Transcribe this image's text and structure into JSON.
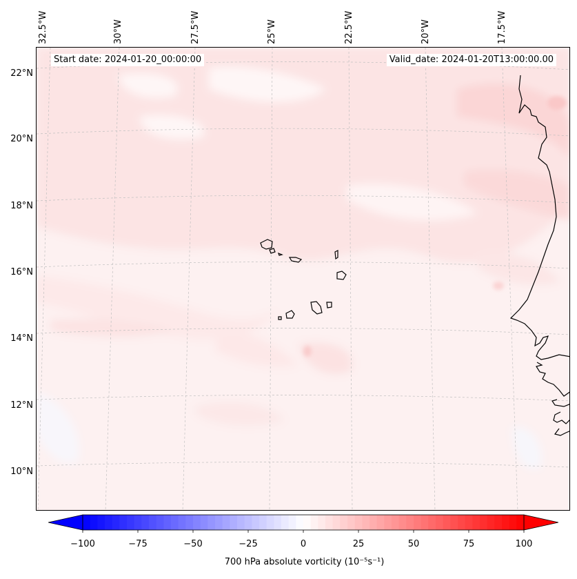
{
  "map": {
    "start_date": "Start date: 2024-01-20_00:00:00",
    "valid_date": "Valid_date: 2024-01-20T13:00:00.00",
    "lon_labels": [
      "32.5°W",
      "30°W",
      "27.5°W",
      "25°W",
      "22.5°W",
      "20°W",
      "17.5°W"
    ],
    "lat_labels": [
      "22°N",
      "20°N",
      "18°N",
      "16°N",
      "14°N",
      "12°N",
      "10°N"
    ],
    "colors": {
      "coastline": "#000000",
      "gridline": "#bfbfbf",
      "background_tint": "#fdf2f2"
    }
  },
  "colorbar": {
    "ticks": [
      "−100",
      "−75",
      "−50",
      "−25",
      "0",
      "25",
      "50",
      "75",
      "100"
    ],
    "label": "700 hPa absolute vorticity (10⁻⁵s⁻¹)",
    "min_color": "#0000ff",
    "mid_color": "#ffffff",
    "max_color": "#ff0000",
    "range": [
      -100,
      100
    ],
    "levels": 60
  }
}
